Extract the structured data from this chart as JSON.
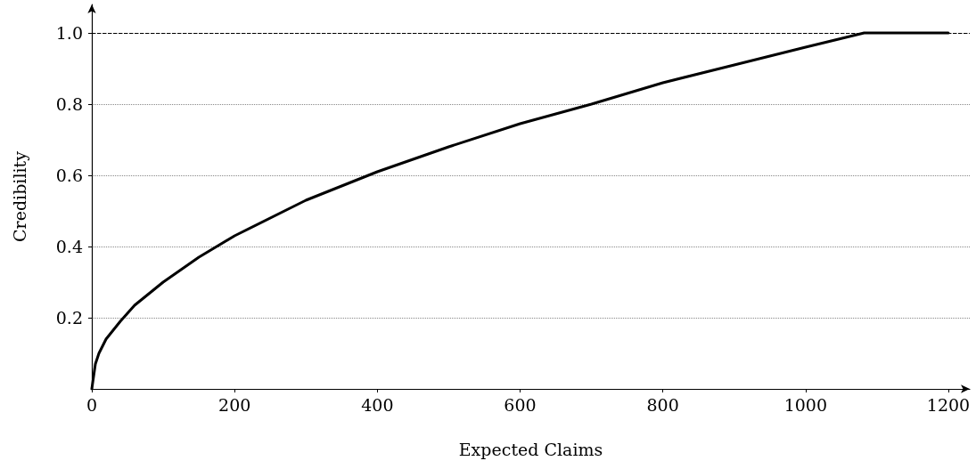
{
  "chart_data": {
    "type": "line",
    "xlabel": "Expected Claims",
    "ylabel": "Credibility",
    "x": [
      0,
      5,
      10,
      20,
      40,
      60,
      100,
      150,
      200,
      300,
      400,
      500,
      600,
      700,
      800,
      900,
      1000,
      1082,
      1200
    ],
    "series": [
      {
        "color": "#000000",
        "values": [
          0,
          0.07,
          0.1,
          0.14,
          0.19,
          0.235,
          0.3,
          0.37,
          0.43,
          0.53,
          0.61,
          0.68,
          0.745,
          0.8,
          0.86,
          0.91,
          0.96,
          1.0,
          1.0
        ]
      }
    ],
    "xlim": [
      0,
      1230
    ],
    "xticks": [
      0,
      200,
      400,
      600,
      800,
      1000,
      1200
    ],
    "ylim": [
      0,
      1.08
    ],
    "yticks": [
      0.2,
      0.4,
      0.6,
      0.8,
      {
        "value": 1,
        "label": "1.0"
      }
    ],
    "ref_lines": [
      {
        "axis": "y",
        "value": 1.0,
        "line_style": "dashed",
        "color": "#000000"
      }
    ],
    "grid": "y",
    "marker": "none",
    "line_style": "solid"
  }
}
